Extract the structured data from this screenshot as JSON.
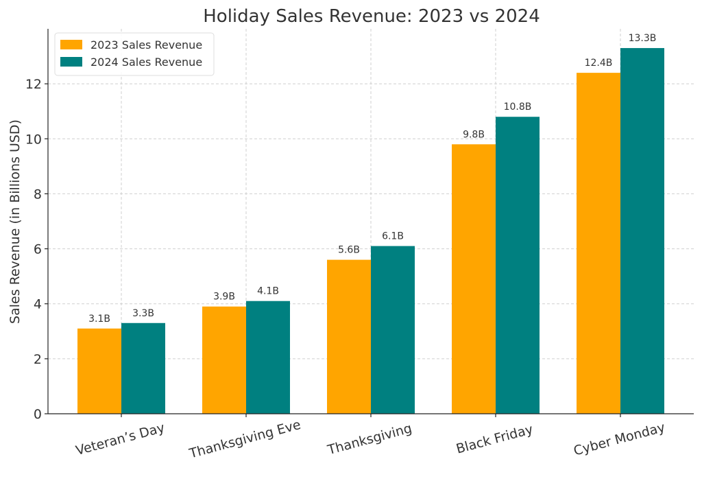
{
  "chart_data": {
    "type": "bar",
    "title": "Holiday Sales Revenue: 2023 vs 2024",
    "xlabel": "",
    "ylabel": "Sales Revenue (in Billions USD)",
    "ylim": [
      0,
      14
    ],
    "yticks": [
      0,
      2,
      4,
      6,
      8,
      10,
      12
    ],
    "grid": true,
    "legend_position": "top-left",
    "categories": [
      "Veteran’s Day",
      "Thanksgiving Eve",
      "Thanksgiving",
      "Black Friday",
      "Cyber Monday"
    ],
    "series": [
      {
        "name": "2023 Sales Revenue",
        "color": "#FFA500",
        "values": [
          3.1,
          3.9,
          5.6,
          9.8,
          12.4
        ],
        "labels": [
          "3.1B",
          "3.9B",
          "5.6B",
          "9.8B",
          "12.4B"
        ]
      },
      {
        "name": "2024 Sales Revenue",
        "color": "#008080",
        "values": [
          3.3,
          4.1,
          6.1,
          10.8,
          13.3
        ],
        "labels": [
          "3.3B",
          "4.1B",
          "6.1B",
          "10.8B",
          "13.3B"
        ]
      }
    ]
  }
}
